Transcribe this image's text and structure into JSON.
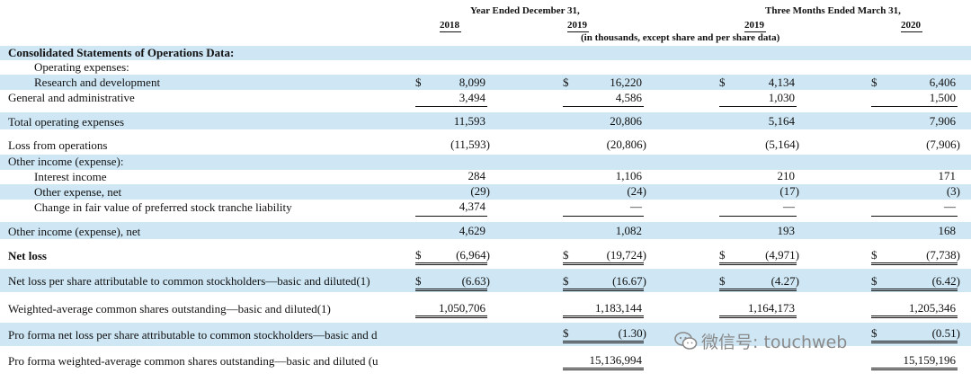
{
  "header": {
    "year_ended": "Year Ended December 31,",
    "three_months": "Three Months Ended March 31,",
    "col_2018": "2018",
    "col_2019a": "2019",
    "col_2019b": "2019",
    "col_2020": "2020",
    "units": "(in thousands, except share and per share data)"
  },
  "section_title": "Consolidated Statements of Operations Data:",
  "rows": [
    {
      "label": "Operating expenses:",
      "values": [
        "",
        "",
        "",
        ""
      ]
    },
    {
      "label": "Research and development",
      "values": [
        "8,099",
        "16,220",
        "4,134",
        "6,406"
      ],
      "dollar": "$"
    },
    {
      "label": "General and administrative",
      "values": [
        "3,494",
        "4,586",
        "1,030",
        "1,500"
      ]
    },
    {
      "label": "Total operating expenses",
      "values": [
        "11,593",
        "20,806",
        "5,164",
        "7,906"
      ]
    },
    {
      "label": "Loss from operations",
      "values": [
        "(11,593)",
        "(20,806)",
        "(5,164)",
        "(7,906)"
      ]
    },
    {
      "label": "Other income (expense):",
      "values": [
        "",
        "",
        "",
        ""
      ]
    },
    {
      "label": "Interest income",
      "values": [
        "284",
        "1,106",
        "210",
        "171"
      ]
    },
    {
      "label": "Other expense, net",
      "values": [
        "(29)",
        "(24)",
        "(17)",
        "(3)"
      ]
    },
    {
      "label": "Change in fair value of preferred stock tranche liability",
      "values": [
        "4,374",
        "—",
        "—",
        "—"
      ]
    },
    {
      "label": "Other income (expense), net",
      "values": [
        "4,629",
        "1,082",
        "193",
        "168"
      ]
    },
    {
      "label": "Net loss",
      "values": [
        "(6,964)",
        "(19,724)",
        "(4,971)",
        "(7,738)"
      ],
      "dollar": "$"
    },
    {
      "label": "Net loss per share attributable to common stockholders—basic and diluted(1)",
      "values": [
        "(6.63)",
        "(16.67)",
        "(4.27)",
        "(6.42)"
      ],
      "dollar": "$"
    },
    {
      "label": "Weighted-average common shares outstanding—basic and diluted(1)",
      "values": [
        "1,050,706",
        "1,183,144",
        "1,164,173",
        "1,205,346"
      ]
    },
    {
      "label": "Pro forma net loss per share attributable to common stockholders—basic and d",
      "values": [
        "",
        "(1.30)",
        "",
        "(0.51)"
      ],
      "dollar": "$"
    },
    {
      "label": "Pro forma weighted-average common shares outstanding—basic and diluted (u",
      "values": [
        "",
        "15,136,994",
        "",
        "15,159,196"
      ]
    }
  ],
  "watermark": {
    "text": "微信号: touchweb",
    "icon": "wechat-icon"
  }
}
